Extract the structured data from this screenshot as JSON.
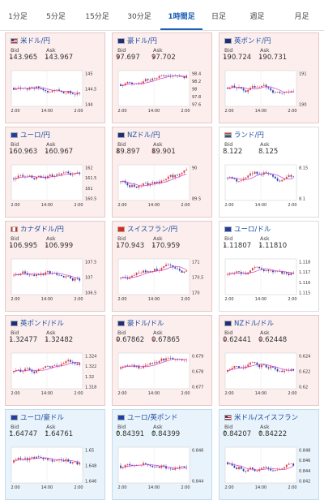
{
  "tabs": [
    "1分足",
    "5分足",
    "15分足",
    "30分足",
    "1時間足",
    "日足",
    "週足",
    "月足"
  ],
  "active_tab": "1時間足",
  "labels": {
    "bid": "Bid",
    "ask": "Ask"
  },
  "cards": [
    {
      "name": "米ドル/円",
      "flag": "us",
      "dir": "down",
      "bid": "143.965",
      "ask": "143.967",
      "ticks": [
        "145",
        "144.5",
        "144"
      ],
      "xt": [
        "2:00",
        "14:00",
        "2:00"
      ],
      "tint": "down"
    },
    {
      "name": "豪ドル/円",
      "flag": "au",
      "dir": "down",
      "bid": "97.697",
      "ask": "97.702",
      "ticks": [
        "98.4",
        "98.2",
        "98",
        "97.8",
        "97.6"
      ],
      "xt": [
        "2:00",
        "14:00",
        "2:00"
      ],
      "tint": "down"
    },
    {
      "name": "英ポンド/円",
      "flag": "gb",
      "dir": "down",
      "bid": "190.724",
      "ask": "190.731",
      "ticks": [
        "191",
        "190"
      ],
      "xt": [
        "2:00",
        "14:00",
        "2:00"
      ],
      "tint": "down"
    },
    {
      "name": "ユーロ/円",
      "flag": "eu",
      "dir": "down",
      "bid": "160.963",
      "ask": "160.967",
      "ticks": [
        "162",
        "161.5",
        "161",
        "160.5"
      ],
      "xt": [
        "2:00",
        "14:00",
        "2:00"
      ],
      "tint": "down"
    },
    {
      "name": "NZドル/円",
      "flag": "nz",
      "dir": "down",
      "bid": "89.897",
      "ask": "89.901",
      "ticks": [
        "90",
        "89.5"
      ],
      "xt": [
        "2:00",
        "14:00",
        "2:00"
      ],
      "tint": "down"
    },
    {
      "name": "ランド/円",
      "flag": "za",
      "dir": "none",
      "bid": "8.122",
      "ask": "8.125",
      "ticks": [
        "8.15",
        "8.1"
      ],
      "xt": [
        "2:00",
        "14:00",
        "2:00"
      ],
      "tint": "neutral"
    },
    {
      "name": "カナダドル/円",
      "flag": "ca",
      "dir": "down",
      "bid": "106.995",
      "ask": "106.999",
      "ticks": [
        "107.5",
        "107",
        "106.5"
      ],
      "xt": [
        "2:00",
        "14:00",
        "2:00"
      ],
      "tint": "down"
    },
    {
      "name": "スイスフラン/円",
      "flag": "ch",
      "dir": "down",
      "bid": "170.943",
      "ask": "170.959",
      "ticks": [
        "171",
        "170.5",
        "170"
      ],
      "xt": [
        "2:00",
        "14:00",
        "2:00"
      ],
      "tint": "down"
    },
    {
      "name": "ユーロ/ドル",
      "flag": "eu",
      "dir": "down",
      "bid": "1.11807",
      "ask": "1.11810",
      "ticks": [
        "1.118",
        "1.117",
        "1.116",
        "1.115"
      ],
      "xt": [
        "2:00",
        "14:00",
        "2:00"
      ],
      "tint": "neutral"
    },
    {
      "name": "英ポンド/ドル",
      "flag": "gb",
      "dir": "down",
      "bid": "1.32477",
      "ask": "1.32482",
      "ticks": [
        "1.324",
        "1.322",
        "1.32",
        "1.318"
      ],
      "xt": [
        "2:00",
        "14:00",
        "2:00"
      ],
      "tint": "down"
    },
    {
      "name": "豪ドル/ドル",
      "flag": "au",
      "dir": "down",
      "bid": "0.67862",
      "ask": "0.67865",
      "ticks": [
        "0.679",
        "0.678",
        "0.677"
      ],
      "xt": [
        "2:00",
        "14:00",
        "2:00"
      ],
      "tint": "down"
    },
    {
      "name": "NZドル/ドル",
      "flag": "nz",
      "dir": "down",
      "bid": "0.62441",
      "ask": "0.62448",
      "ticks": [
        "0.624",
        "0.622",
        "0.62"
      ],
      "xt": [
        "2:00",
        "14:00",
        "2:00"
      ],
      "tint": "down"
    },
    {
      "name": "ユーロ/豪ドル",
      "flag": "eu",
      "dir": "up",
      "bid": "1.64747",
      "ask": "1.64761",
      "ticks": [
        "1.65",
        "1.648",
        "1.646"
      ],
      "xt": [
        "2:00",
        "14:00",
        "2:00"
      ],
      "tint": "up"
    },
    {
      "name": "ユーロ/英ポンド",
      "flag": "eu",
      "dir": "up",
      "bid": "0.84391",
      "ask": "0.84399",
      "ticks": [
        "0.846",
        "0.844"
      ],
      "xt": [
        "2:00",
        "14:00",
        "2:00"
      ],
      "tint": "up"
    },
    {
      "name": "米ドル/スイスフラン",
      "flag": "us",
      "dir": "up",
      "bid": "0.84207",
      "ask": "0.84222",
      "ticks": [
        "0.848",
        "0.846",
        "0.844",
        "0.842"
      ],
      "xt": [
        "2:00",
        "14:00",
        "2:00"
      ],
      "tint": "up"
    }
  ],
  "colors": {
    "candle_up": "#e03b3b",
    "candle_down": "#2a3fb0",
    "ma": "#d040c8",
    "accent": "#1a5fb4"
  }
}
